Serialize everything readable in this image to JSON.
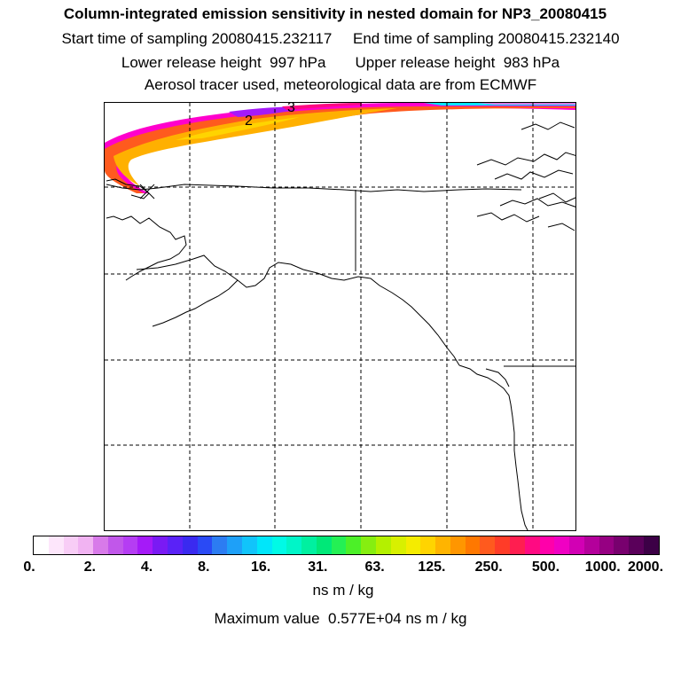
{
  "header": {
    "title": "Column-integrated emission sensitivity in nested domain for NP3_20080415",
    "line2": "Start time of sampling 20080415.232117     End time of sampling 20080415.232140",
    "line3": "Lower release height  997 hPa       Upper release height  983 hPa",
    "line4": "Aerosol tracer used, meteorological data are from ECMWF"
  },
  "map": {
    "contour_labels": [
      "2",
      "3"
    ],
    "grid": "dashed",
    "colors": {
      "plume_outer": "#ff00cc",
      "plume_mid": "#ff5a1e",
      "plume_inner": "#ffb000",
      "plume_core": "#ffd400",
      "coast": "#000000"
    }
  },
  "colorbar": {
    "tick_labels": [
      "0.",
      "2.",
      "4.",
      "8.",
      "16.",
      "31.",
      "63.",
      "125.",
      "250.",
      "500.",
      "1000.",
      "2000."
    ],
    "colors": [
      "#ffffff",
      "#fde6fb",
      "#f8cdf6",
      "#f1b3f2",
      "#d87ae9",
      "#c157ea",
      "#b53df3",
      "#a51af8",
      "#7a1af4",
      "#5a22f7",
      "#3a2af0",
      "#2a4af5",
      "#2c7cf2",
      "#1ea0f8",
      "#11c4fa",
      "#00e6fa",
      "#00fae6",
      "#00f5c8",
      "#00f0a0",
      "#00e878",
      "#24f054",
      "#4cf028",
      "#86ee10",
      "#b4f000",
      "#d8f000",
      "#f5ec00",
      "#ffd400",
      "#ffb400",
      "#ff9600",
      "#ff7800",
      "#ff5a1e",
      "#ff3c28",
      "#ff1e50",
      "#ff0a82",
      "#ff00aa",
      "#f000c3",
      "#d200b4",
      "#b4009b",
      "#960082",
      "#78006e",
      "#5a005a",
      "#3c0046"
    ],
    "units": "ns m / kg",
    "maximum": "Maximum value  0.577E+04 ns m / kg"
  }
}
